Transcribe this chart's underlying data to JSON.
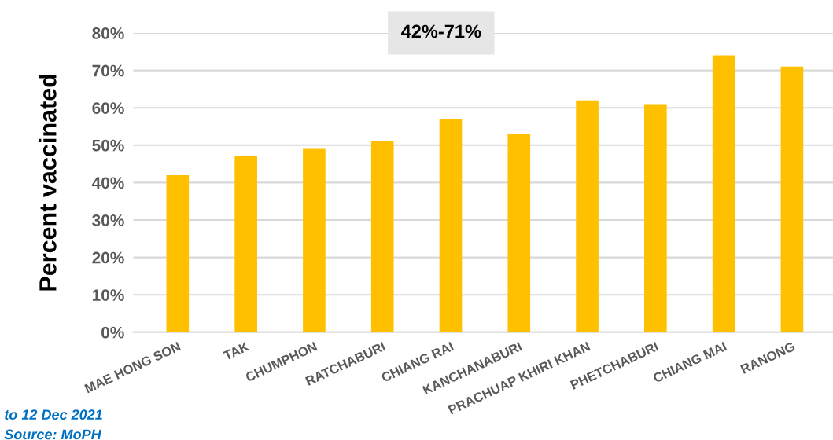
{
  "chart_data": {
    "type": "bar",
    "ylabel": "Percent vaccinated",
    "categories": [
      "MAE HONG SON",
      "TAK",
      "CHUMPHON",
      "RATCHABURI",
      "CHIANG RAI",
      "KANCHANABURI",
      "PRACHUAP KHIRI KHAN",
      "PHETCHABURI",
      "CHIANG MAI",
      "RANONG"
    ],
    "values": [
      42,
      47,
      49,
      51,
      57,
      53,
      62,
      61,
      74,
      71
    ],
    "color": "#ffc000",
    "ylim": [
      0,
      80
    ],
    "yticks": [
      {
        "value": 0,
        "label": "0%"
      },
      {
        "value": 10,
        "label": "10%"
      },
      {
        "value": 20,
        "label": "20%"
      },
      {
        "value": 30,
        "label": "30%"
      },
      {
        "value": 40,
        "label": "40%"
      },
      {
        "value": 50,
        "label": "50%"
      },
      {
        "value": 60,
        "label": "60%"
      },
      {
        "value": 70,
        "label": "70%"
      },
      {
        "value": 80,
        "label": "80%"
      }
    ],
    "grid": "y",
    "annotations": [
      "42%-71%",
      "to 12 Dec 2021",
      "Source: MoPH"
    ]
  }
}
